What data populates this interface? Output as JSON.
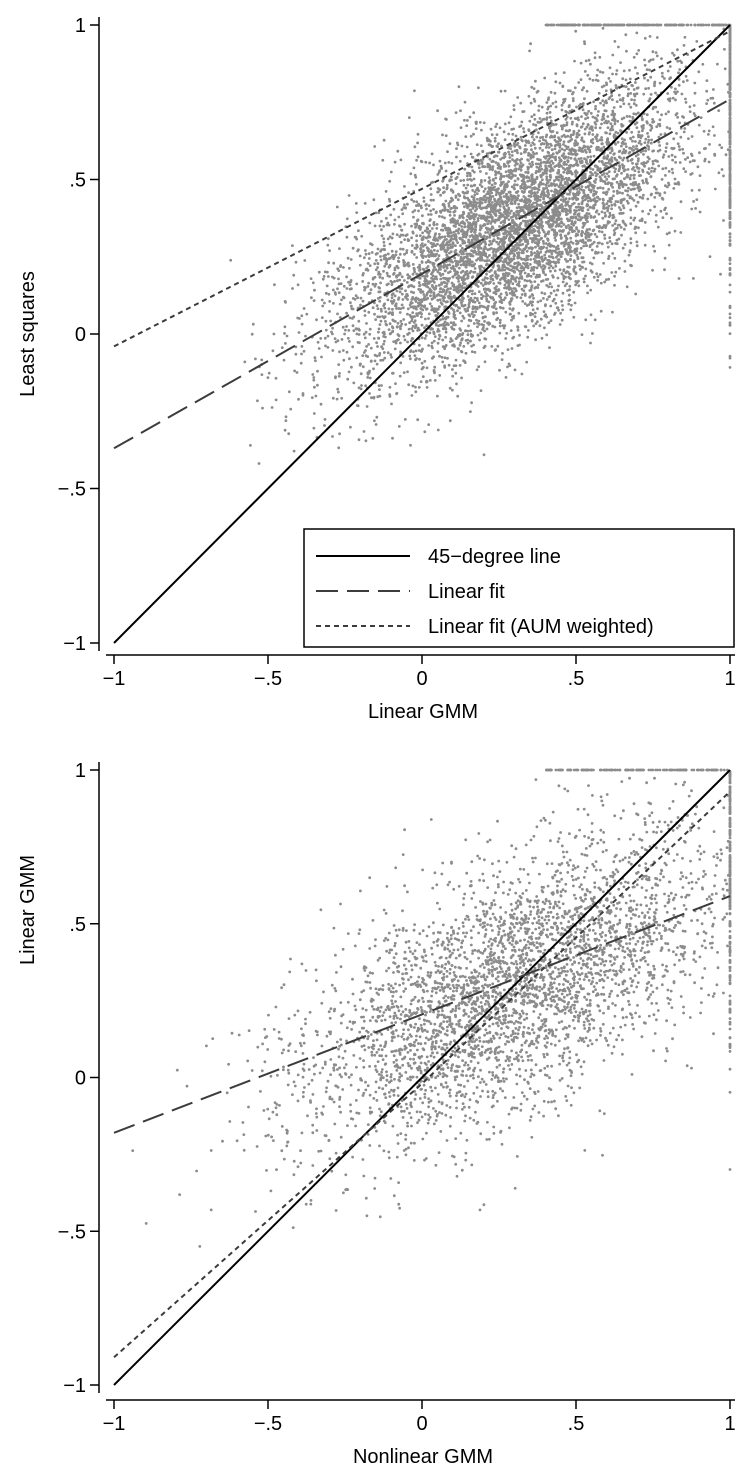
{
  "colors": {
    "scatter": "#8c8c8c",
    "line_45": "#000000",
    "linear_fit": "#3c3c3c",
    "weighted_fit": "#3c3c3c",
    "background": "#ffffff"
  },
  "chart_data": [
    {
      "type": "scatter",
      "xlabel": "Linear GMM",
      "ylabel": "Least squares",
      "xlim": [
        -1,
        1
      ],
      "ylim": [
        -1,
        1
      ],
      "xticks": [
        -1,
        -0.5,
        0,
        0.5,
        1
      ],
      "yticks": [
        -1,
        -0.5,
        0,
        0.5,
        1
      ],
      "xtick_labels": [
        "−1",
        "−.5",
        "0",
        ".5",
        "1"
      ],
      "ytick_labels": [
        "−1",
        "−.5",
        "0",
        ".5",
        "1"
      ],
      "grid": false,
      "legend_position": "bottom-right",
      "legend": [
        {
          "label": "45−degree line",
          "style": "solid"
        },
        {
          "label": "Linear fit",
          "style": "long-dash"
        },
        {
          "label": "Linear fit (AUM weighted)",
          "style": "short-dash"
        }
      ],
      "lines": [
        {
          "name": "45−degree line",
          "style": "solid",
          "x": [
            -1,
            1
          ],
          "y": [
            -1,
            1
          ]
        },
        {
          "name": "Linear fit",
          "style": "long-dash",
          "x": [
            -1,
            1
          ],
          "y": [
            -0.37,
            0.76
          ]
        },
        {
          "name": "Linear fit (AUM weighted)",
          "style": "short-dash",
          "x": [
            -1,
            1
          ],
          "y": [
            -0.04,
            0.98
          ]
        }
      ],
      "scatter": {
        "n_points": 6500,
        "center": [
          0.3,
          0.35
        ],
        "slope": 0.55,
        "spread_x": 0.28,
        "spread_y": 0.17,
        "note": "dense cloud of grey points concentrated around (0.2, 0.3); many points on the right boundary x=1 and top boundary y=1"
      }
    },
    {
      "type": "scatter",
      "xlabel": "Nonlinear GMM",
      "ylabel": "Linear GMM",
      "xlim": [
        -1,
        1
      ],
      "ylim": [
        -1,
        1
      ],
      "xticks": [
        -1,
        -0.5,
        0,
        0.5,
        1
      ],
      "yticks": [
        -1,
        -0.5,
        0,
        0.5,
        1
      ],
      "xtick_labels": [
        "−1",
        "−.5",
        "0",
        ".5",
        "1"
      ],
      "ytick_labels": [
        "−1",
        "−.5",
        "0",
        ".5",
        "1"
      ],
      "grid": false,
      "lines": [
        {
          "name": "45−degree line",
          "style": "solid",
          "x": [
            -1,
            1
          ],
          "y": [
            -1,
            1
          ]
        },
        {
          "name": "Linear fit",
          "style": "long-dash",
          "x": [
            -1,
            1
          ],
          "y": [
            -0.18,
            0.59
          ]
        },
        {
          "name": "Linear fit (AUM weighted)",
          "style": "short-dash",
          "x": [
            -1,
            0,
            1
          ],
          "y": [
            -0.91,
            -0.02,
            0.93
          ]
        }
      ],
      "scatter": {
        "n_points": 4200,
        "center": [
          0.3,
          0.3
        ],
        "slope": 0.45,
        "spread_x": 0.35,
        "spread_y": 0.2,
        "note": "grey cloud spread from x=-1 to 1, denser near (0.3, 0.3); points on right boundary x=1 and top boundary y=1"
      }
    }
  ]
}
